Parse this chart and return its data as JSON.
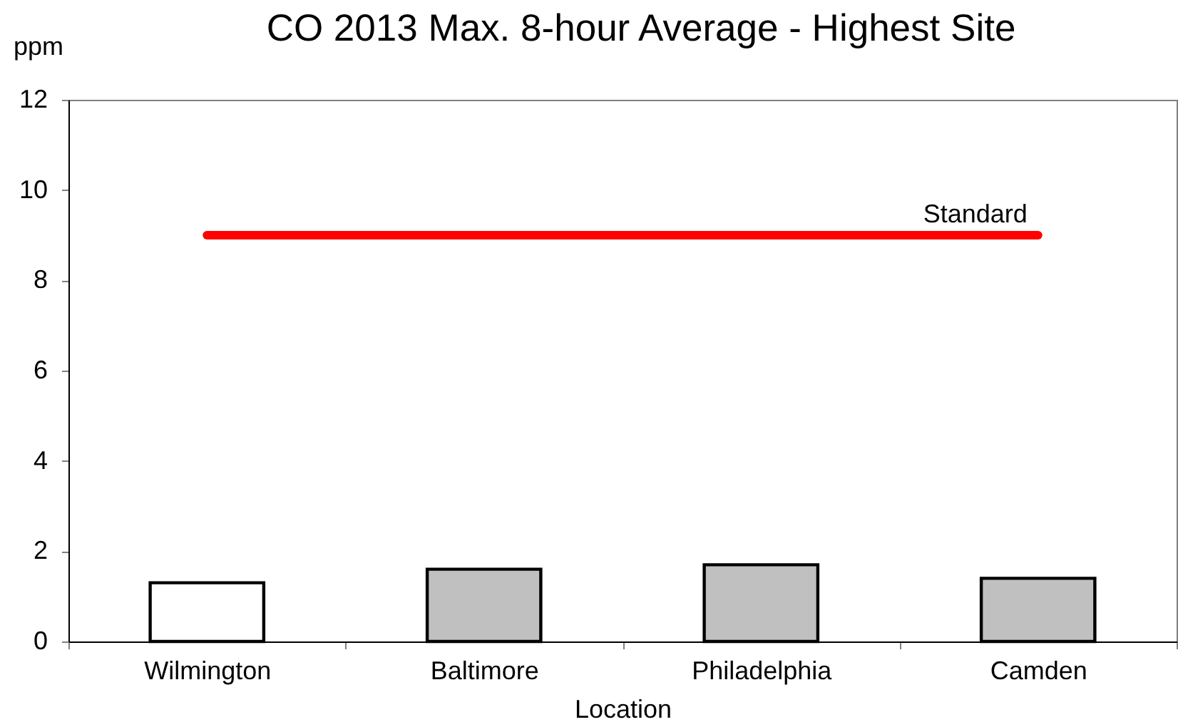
{
  "chart_data": {
    "type": "bar",
    "title": "CO 2013 Max. 8-hour Average - Highest Site",
    "ylabel": "ppm",
    "xlabel": "Location",
    "categories": [
      "Wilmington",
      "Baltimore",
      "Philadelphia",
      "Camden"
    ],
    "series": [
      {
        "values": [
          1.3,
          1.6,
          1.7,
          1.4
        ],
        "colors": [
          "#ffffff",
          "#c0c0c0",
          "#c0c0c0",
          "#c0c0c0"
        ]
      },
      {
        "type": "line",
        "name": "Standard",
        "color": "#ff0000",
        "values": [
          9,
          9,
          9,
          9
        ]
      }
    ],
    "ylim": [
      0,
      12
    ],
    "yticks": [
      0,
      2,
      4,
      6,
      8,
      10,
      12
    ]
  }
}
